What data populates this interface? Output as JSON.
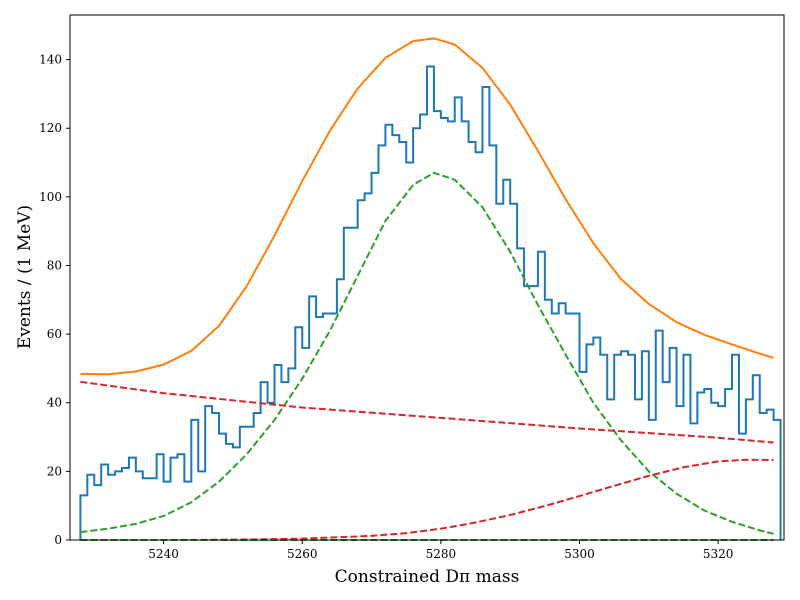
{
  "chart_data": {
    "type": "line",
    "title": "",
    "xlabel": "Constrained Dπ mass",
    "ylabel": "Events / (1 MeV)",
    "xlim": [
      5226.5,
      5329.5
    ],
    "ylim": [
      0,
      153
    ],
    "xticks": [
      5240,
      5260,
      5280,
      5300,
      5320
    ],
    "yticks": [
      0,
      20,
      40,
      60,
      80,
      100,
      120,
      140
    ],
    "grid": false,
    "legend": "none",
    "histogram": {
      "color": "#1f77b4",
      "bin_start": 5228,
      "bin_width": 1,
      "counts": [
        13,
        19,
        16,
        22,
        19,
        20,
        21,
        24,
        20,
        18,
        18,
        25,
        17,
        24,
        25,
        17,
        35,
        20,
        39,
        37,
        31,
        28,
        27,
        33,
        33,
        37,
        46,
        40,
        51,
        46,
        50,
        62,
        56,
        71,
        65,
        66,
        66,
        76,
        91,
        91,
        99,
        101,
        107,
        115,
        121,
        118,
        116,
        110,
        120,
        124,
        138,
        125,
        123,
        122,
        129,
        122,
        116,
        113,
        132,
        115,
        98,
        105,
        98,
        85,
        74,
        74,
        84,
        70,
        66,
        69,
        66,
        66,
        49,
        57,
        59,
        54,
        41,
        54,
        55,
        54,
        41,
        55,
        35,
        61,
        46,
        56,
        39,
        54,
        34,
        43,
        44,
        40,
        39,
        44,
        54,
        31,
        41,
        48,
        37,
        38,
        35
      ]
    },
    "series": [
      {
        "color": "#ff7f0e",
        "style": "solid",
        "x": [
          5228,
          5232,
          5236,
          5240,
          5244,
          5248,
          5252,
          5256,
          5260,
          5264,
          5268,
          5272,
          5276,
          5279,
          5282,
          5286,
          5290,
          5294,
          5298,
          5302,
          5306,
          5310,
          5314,
          5318,
          5322,
          5326,
          5328
        ],
        "y": [
          48.4,
          48.3,
          49.1,
          51.1,
          55.1,
          62.4,
          74.0,
          88.7,
          104.6,
          119.3,
          131.6,
          140.5,
          145.4,
          146.2,
          144.4,
          137.6,
          126.9,
          113.4,
          99.3,
          86.5,
          76.0,
          68.8,
          63.5,
          59.8,
          57.0,
          54.3,
          53.1
        ]
      },
      {
        "color": "#2ca02c",
        "style": "dashed",
        "x": [
          5228,
          5232,
          5236,
          5240,
          5244,
          5248,
          5252,
          5256,
          5260,
          5264,
          5268,
          5272,
          5276,
          5279,
          5282,
          5286,
          5290,
          5294,
          5298,
          5302,
          5306,
          5310,
          5314,
          5318,
          5322,
          5326,
          5328
        ],
        "y": [
          2.3,
          3.3,
          4.7,
          7.0,
          11.0,
          17.0,
          25.0,
          35.0,
          47.0,
          61.0,
          77.0,
          93.0,
          103.5,
          107.0,
          105.0,
          97.0,
          84.0,
          68.5,
          54.0,
          40.0,
          29.0,
          20.0,
          13.5,
          8.6,
          5.3,
          2.8,
          1.8
        ]
      },
      {
        "color": "#d62728",
        "style": "dashed",
        "x": [
          5228,
          5240,
          5260,
          5280,
          5300,
          5320,
          5328
        ],
        "y": [
          46.1,
          42.8,
          38.6,
          35.6,
          32.5,
          29.8,
          28.4
        ]
      },
      {
        "color": "#d62728",
        "style": "dashed",
        "x": [
          5228,
          5240,
          5250,
          5260,
          5270,
          5275,
          5280,
          5285,
          5290,
          5295,
          5300,
          5305,
          5310,
          5315,
          5320,
          5324,
          5328
        ],
        "y": [
          0.0,
          0.0,
          0.1,
          0.4,
          1.2,
          2.0,
          3.3,
          5.1,
          7.3,
          9.9,
          12.8,
          15.8,
          18.7,
          21.2,
          22.9,
          23.4,
          23.3
        ]
      },
      {
        "color": "#2ca02c",
        "style": "dashed",
        "x": [
          5228,
          5328
        ],
        "y": [
          0.0,
          0.0
        ]
      }
    ]
  }
}
